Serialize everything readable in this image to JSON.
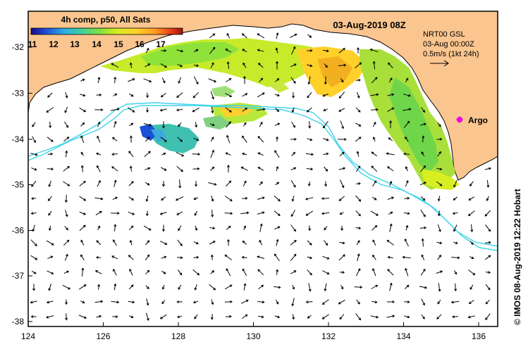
{
  "colorbar": {
    "title": "4h comp, p50, All Sats",
    "tick_labels": [
      "11",
      "12",
      "13",
      "14",
      "15",
      "16",
      "17"
    ],
    "min": 11,
    "max": 18,
    "colors": [
      "#1a0a8c",
      "#1f4fd6",
      "#2bb0e6",
      "#3fd0a0",
      "#7fe040",
      "#d8ee20",
      "#ffd02a",
      "#ff9a20",
      "#e8401a",
      "#a0100a"
    ]
  },
  "header": {
    "timestamp": "03-Aug-2019 08Z"
  },
  "info": {
    "line1": "NRT00 GSL",
    "line2": "03-Aug 00:00Z",
    "line3": "0.5m/s (1kt 24h)"
  },
  "argo": {
    "label": "Argo",
    "lon": 135.5,
    "lat": -33.6
  },
  "axes": {
    "lon_min": 124,
    "lon_max": 136.5,
    "lat_min": -38.1,
    "lat_max": -31.3,
    "x_ticks": [
      "124",
      "126",
      "128",
      "130",
      "132",
      "134",
      "136"
    ],
    "y_ticks": [
      "-32",
      "-33",
      "-34",
      "-35",
      "-36",
      "-37",
      "-38"
    ]
  },
  "credit": "© IMOS 08-Aug-2019 12:22 Hobart",
  "colors": {
    "land": "#fbc58f",
    "ocean": "#ffffff",
    "isobath": "#3fd3ec",
    "argo": "#ff00ff"
  }
}
